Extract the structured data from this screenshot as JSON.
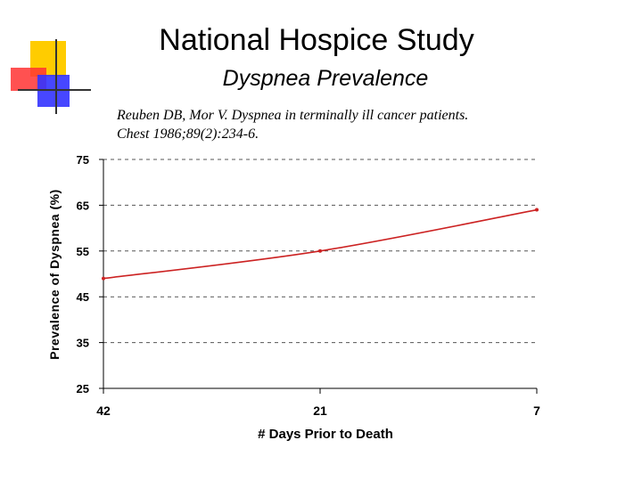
{
  "header": {
    "title": "National Hospice Study",
    "subtitle": "Dyspnea Prevalence",
    "citation_line1": "Reuben DB, Mor V. Dyspnea in terminally ill cancer patients.",
    "citation_line2": "Chest 1986;89(2):234-6."
  },
  "colors": {
    "line": "#cc2222",
    "axis": "#000000",
    "grid": "#555555",
    "deco_yellow": "#ffcc00",
    "deco_red": "#ff3333",
    "deco_blue": "#3333ff"
  },
  "chart_data": {
    "type": "line",
    "title": "",
    "xlabel": "# Days Prior to Death",
    "ylabel": "Prevalence  of  Dyspnea (%)",
    "categories": [
      "42",
      "21",
      "7"
    ],
    "series": [
      {
        "values": [
          49,
          55,
          64
        ]
      }
    ],
    "ylim": [
      25,
      75
    ],
    "yticks": [
      "75",
      "65",
      "55",
      "45",
      "35",
      "25"
    ],
    "grid": true,
    "legend": "none"
  }
}
